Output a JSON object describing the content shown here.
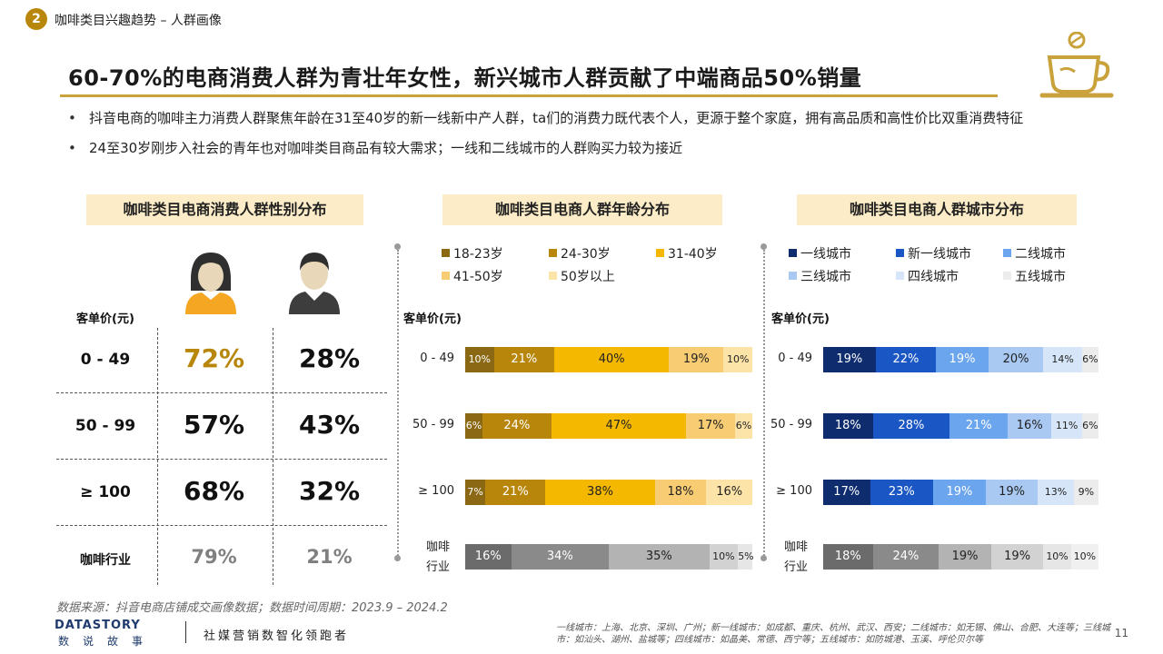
{
  "header": {
    "badge": "2",
    "section": "咖啡类目兴趣趋势 – 人群画像",
    "headline": "60-70%的电商消费人群为青壮年女性，新兴城市人群贡献了中端商品50%销量"
  },
  "bullets": [
    "抖音电商的咖啡主力消费人群聚焦年龄在31至40岁的新一线新中产人群，ta们的消费力既代表个人，更源于整个家庭，拥有高品质和高性价比双重消费特征",
    "24至30岁刚步入社会的青年也对咖啡类目商品有较大需求；一线和二线城市的人群购买力较为接近"
  ],
  "panels": {
    "gender_title": "咖啡类目电商消费人群性别分布",
    "age_title": "咖啡类目电商人群年龄分布",
    "city_title": "咖啡类目电商人群城市分布",
    "axis_title": "客单价(元)"
  },
  "chart_data": [
    {
      "type": "table",
      "title": "咖啡类目电商消费人群性别分布",
      "row_header": "客单价(元)",
      "columns": [
        "female-icon",
        "male-icon"
      ],
      "rows": [
        {
          "label": "0 - 49",
          "female": "72%",
          "male": "28%"
        },
        {
          "label": "50 - 99",
          "female": "57%",
          "male": "43%"
        },
        {
          "label": "≥ 100",
          "female": "68%",
          "male": "32%"
        },
        {
          "label": "咖啡行业",
          "female": "79%",
          "male": "21%"
        }
      ],
      "colors": {
        "highlight": "#b8860b",
        "normal": "#111111",
        "industry": "#808080"
      }
    },
    {
      "type": "bar",
      "stacked": true,
      "orientation": "horizontal",
      "title": "咖啡类目电商人群年龄分布",
      "ylabel": "客单价(元)",
      "categories": [
        "0 - 49",
        "50 - 99",
        "≥ 100",
        "咖啡行业"
      ],
      "series": [
        {
          "name": "18-23岁",
          "color": "#8b6914",
          "values": [
            10,
            6,
            7,
            16
          ]
        },
        {
          "name": "24-30岁",
          "color": "#b8860b",
          "values": [
            21,
            24,
            21,
            34
          ]
        },
        {
          "name": "31-40岁",
          "color": "#f5b800",
          "values": [
            40,
            47,
            38,
            35
          ]
        },
        {
          "name": "41-50岁",
          "color": "#f7cc73",
          "values": [
            19,
            17,
            18,
            10
          ]
        },
        {
          "name": "50岁以上",
          "color": "#fce3a8",
          "values": [
            10,
            6,
            16,
            5
          ]
        }
      ],
      "industry_colors": [
        "#6b6b6b",
        "#8a8a8a",
        "#b3b3b3",
        "#d2d2d2",
        "#e6e6e6"
      ],
      "legend": "top",
      "xlim": [
        0,
        100
      ]
    },
    {
      "type": "bar",
      "stacked": true,
      "orientation": "horizontal",
      "title": "咖啡类目电商人群城市分布",
      "ylabel": "客单价(元)",
      "categories": [
        "0 - 49",
        "50 - 99",
        "≥ 100",
        "咖啡行业"
      ],
      "series": [
        {
          "name": "一线城市",
          "color": "#0f2d6e",
          "values": [
            19,
            18,
            17,
            18
          ]
        },
        {
          "name": "新一线城市",
          "color": "#1a56c4",
          "values": [
            22,
            28,
            23,
            24
          ]
        },
        {
          "name": "二线城市",
          "color": "#6aa5ee",
          "values": [
            19,
            21,
            19,
            19
          ]
        },
        {
          "name": "三线城市",
          "color": "#a9c9f2",
          "values": [
            20,
            16,
            19,
            19
          ]
        },
        {
          "name": "四线城市",
          "color": "#d6e6f8",
          "values": [
            14,
            11,
            13,
            10
          ]
        },
        {
          "name": "五线城市",
          "color": "#ececec",
          "values": [
            6,
            6,
            9,
            10
          ]
        }
      ],
      "industry_colors": [
        "#6b6b6b",
        "#8a8a8a",
        "#b3b3b3",
        "#d2d2d2",
        "#e6e6e6",
        "#f0f0f0"
      ],
      "legend": "top",
      "xlim": [
        0,
        100
      ]
    }
  ],
  "footer": {
    "source": "数据来源：抖音电商店铺成交画像数据；数据时间周期：2023.9 – 2024.2",
    "city_note": "一线城市：上海、北京、深圳、广州；新一线城市：如成都、重庆、杭州、武汉、西安；二线城市：如无锡、佛山、合肥、大连等；三线城市：如汕头、湖州、盐城等；四线城市：如晶美、常德、西宁等；五线城市：如防城港、玉溪、呼伦贝尔等",
    "logo": "DATASTORY",
    "logo_sub": "数说故事",
    "tagline": "社媒营销数智化领跑者",
    "page": "11"
  }
}
